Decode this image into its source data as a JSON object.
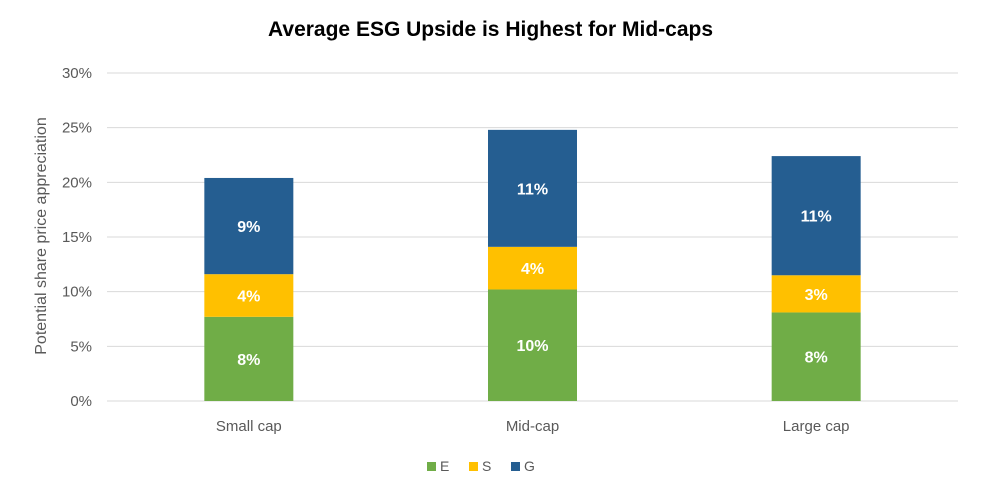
{
  "chart_data": {
    "type": "bar",
    "stacked": true,
    "title": "Average ESG Upside is Highest for Mid-caps",
    "xlabel": "",
    "ylabel": "Potential share price appreciation",
    "categories": [
      "Small cap",
      "Mid-cap",
      "Large cap"
    ],
    "series": [
      {
        "name": "E",
        "values": [
          7.7,
          10.2,
          8.1
        ],
        "labels": [
          "8%",
          "10%",
          "8%"
        ],
        "color": "#70AD47"
      },
      {
        "name": "S",
        "values": [
          3.9,
          3.9,
          3.4
        ],
        "labels": [
          "4%",
          "4%",
          "3%"
        ],
        "color": "#FFC000"
      },
      {
        "name": "G",
        "values": [
          8.8,
          10.7,
          10.9
        ],
        "labels": [
          "9%",
          "11%",
          "11%"
        ],
        "color": "#255E91"
      }
    ],
    "ylim": [
      0,
      30
    ],
    "yticks": [
      "0%",
      "5%",
      "10%",
      "15%",
      "20%",
      "25%",
      "30%"
    ],
    "ytick_values": [
      0,
      5,
      10,
      15,
      20,
      25,
      30
    ],
    "grid": true,
    "gridline_color": "#D9D9D9",
    "legend_position": "bottom"
  }
}
